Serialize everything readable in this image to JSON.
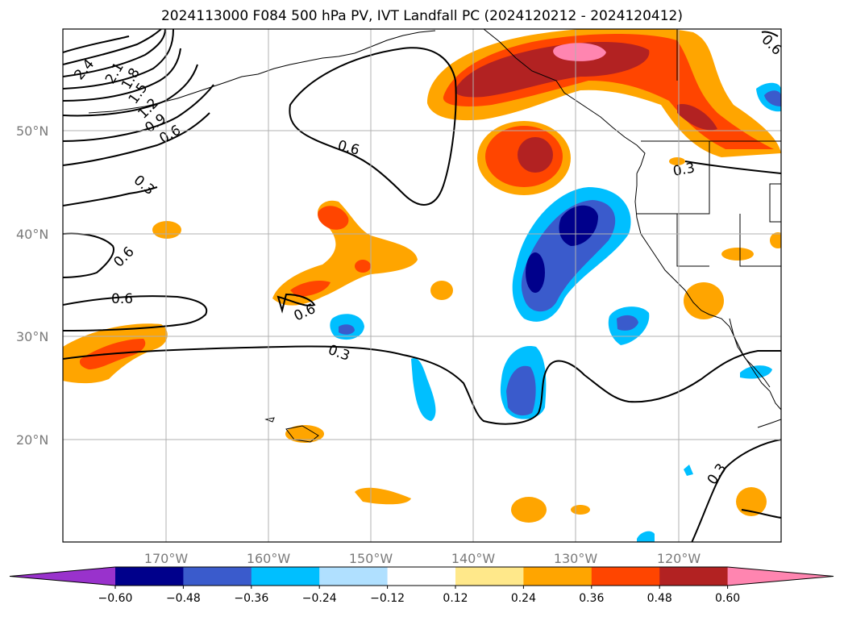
{
  "title": "2024113000 F084 500 hPa PV, IVT Landfall PC (2024120212 - 2024120412)",
  "lon_ticks": [
    "170°W",
    "160°W",
    "150°W",
    "140°W",
    "130°W",
    "120°W"
  ],
  "lat_ticks": [
    "50°N",
    "40°N",
    "30°N",
    "20°N"
  ],
  "colorbar": {
    "colors": [
      "#9932cc",
      "#00008b",
      "#3a5bcc",
      "#00bfff",
      "#b0e0ff",
      "#ffffff",
      "#ffe88a",
      "#ffa500",
      "#ff4500",
      "#b22222",
      "#ff85b0"
    ],
    "labels": [
      "−0.60",
      "−0.48",
      "−0.36",
      "−0.24",
      "−0.12",
      "0.12",
      "0.24",
      "0.36",
      "0.48",
      "0.60"
    ]
  },
  "contour_labels": [
    "2.4",
    "2.1",
    "1.8",
    "1.5",
    "1.2",
    "0.9",
    "0.6",
    "0.6",
    "0.3",
    "0.6",
    "0.6",
    "0.6",
    "0.3",
    "0.3",
    "0.3",
    "0.6"
  ],
  "colors": {
    "grid": "#b0b0b0",
    "coast": "#000000",
    "frame": "#000000"
  }
}
